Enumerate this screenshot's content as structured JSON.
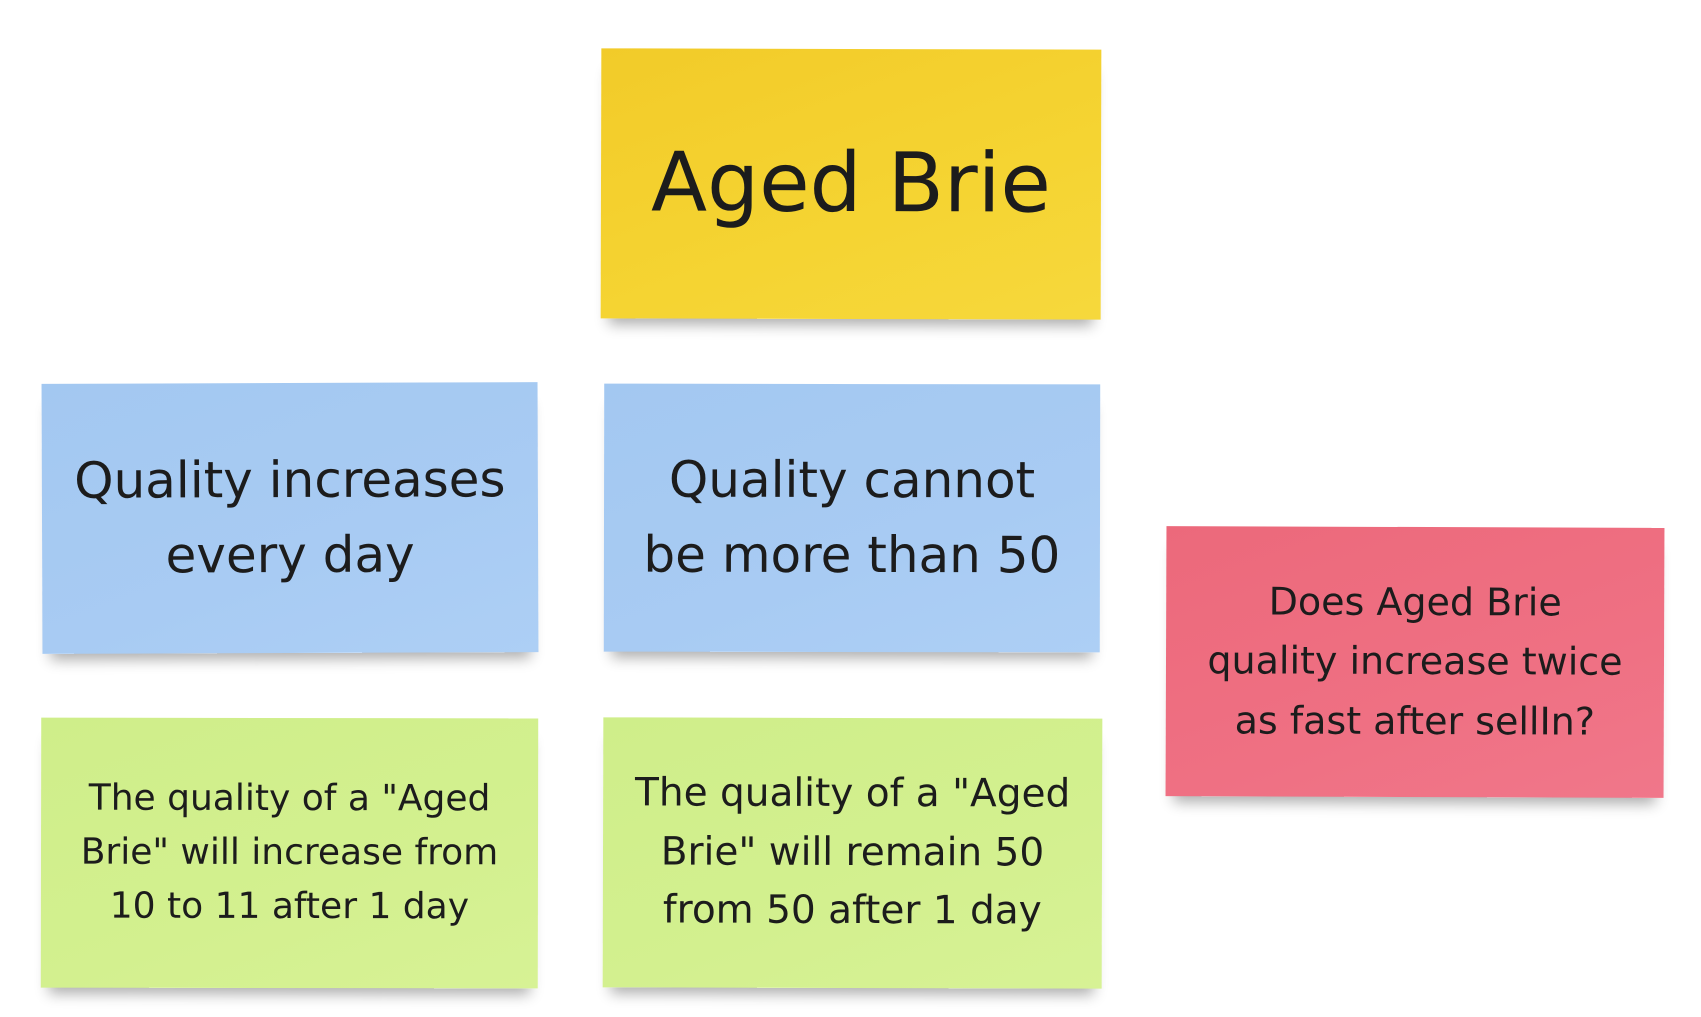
{
  "board": {
    "notes": [
      {
        "id": "title",
        "color": "#f5d432",
        "text": "Aged Brie"
      },
      {
        "id": "rule_1",
        "color": "#a8cbf3",
        "text": "Quality increases\nevery day"
      },
      {
        "id": "rule_2",
        "color": "#a8cbf3",
        "text": "Quality cannot\nbe more than 50"
      },
      {
        "id": "example_1",
        "color": "#d3f08f",
        "text": "The quality of a \"Aged\nBrie\" will increase from\n10 to 11 after 1 day"
      },
      {
        "id": "example_2",
        "color": "#d3f08f",
        "text": "The quality of a \"Aged\nBrie\" will remain 50\nfrom 50 after 1 day"
      },
      {
        "id": "question",
        "color": "#ef7083",
        "text": "Does Aged Brie\nquality increase twice\nas fast after sellIn?"
      }
    ]
  }
}
